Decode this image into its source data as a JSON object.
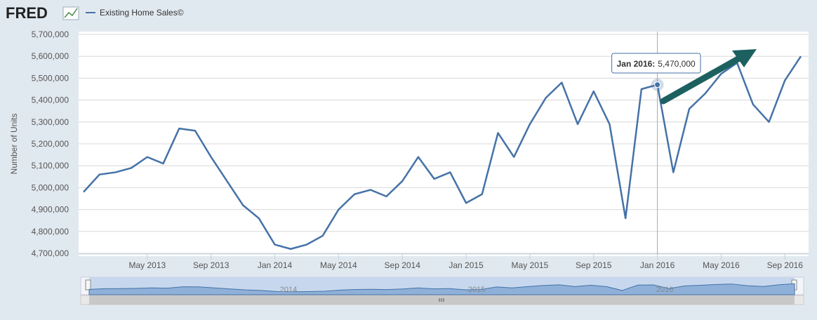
{
  "logo": "FRED",
  "chart_data": {
    "type": "line",
    "y_label": "Number of Units",
    "x": [
      "Jan 2013",
      "Feb 2013",
      "Mar 2013",
      "Apr 2013",
      "May 2013",
      "Jun 2013",
      "Jul 2013",
      "Aug 2013",
      "Sep 2013",
      "Oct 2013",
      "Nov 2013",
      "Dec 2013",
      "Jan 2014",
      "Feb 2014",
      "Mar 2014",
      "Apr 2014",
      "May 2014",
      "Jun 2014",
      "Jul 2014",
      "Aug 2014",
      "Sep 2014",
      "Oct 2014",
      "Nov 2014",
      "Dec 2014",
      "Jan 2015",
      "Feb 2015",
      "Mar 2015",
      "Apr 2015",
      "May 2015",
      "Jun 2015",
      "Jul 2015",
      "Aug 2015",
      "Sep 2015",
      "Oct 2015",
      "Nov 2015",
      "Dec 2015",
      "Jan 2016",
      "Feb 2016",
      "Mar 2016",
      "Apr 2016",
      "May 2016",
      "Jun 2016",
      "Jul 2016",
      "Aug 2016",
      "Sep 2016",
      "Oct 2016"
    ],
    "series": [
      {
        "name": "Existing Home Sales©",
        "color": "#4572a7",
        "values": [
          4980000,
          5060000,
          5070000,
          5090000,
          5140000,
          5110000,
          5270000,
          5260000,
          5140000,
          5030000,
          4920000,
          4860000,
          4740000,
          4720000,
          4740000,
          4780000,
          4900000,
          4970000,
          4990000,
          4960000,
          5030000,
          5140000,
          5040000,
          5070000,
          4930000,
          4970000,
          5250000,
          5140000,
          5290000,
          5410000,
          5480000,
          5290000,
          5440000,
          5290000,
          4860000,
          5450000,
          5470000,
          5070000,
          5360000,
          5430000,
          5520000,
          5570000,
          5380000,
          5300000,
          5490000,
          5600000
        ]
      }
    ],
    "xticks": [
      "May 2013",
      "Sep 2013",
      "Jan 2014",
      "May 2014",
      "Sep 2014",
      "Jan 2015",
      "May 2015",
      "Sep 2015",
      "Jan 2016",
      "May 2016",
      "Sep 2016"
    ],
    "ylim": [
      4700000,
      5700000
    ],
    "yticks": [
      {
        "value": 4700000,
        "label": "4,700,000"
      },
      {
        "value": 4800000,
        "label": "4,800,000"
      },
      {
        "value": 4900000,
        "label": "4,900,000"
      },
      {
        "value": 5000000,
        "label": "5,000,000"
      },
      {
        "value": 5100000,
        "label": "5,100,000"
      },
      {
        "value": 5200000,
        "label": "5,200,000"
      },
      {
        "value": 5300000,
        "label": "5,300,000"
      },
      {
        "value": 5400000,
        "label": "5,400,000"
      },
      {
        "value": 5500000,
        "label": "5,500,000"
      },
      {
        "value": 5600000,
        "label": "5,600,000"
      },
      {
        "value": 5700000,
        "label": "5,700,000"
      }
    ],
    "grid": true,
    "tooltip": {
      "label": "Jan 2016:",
      "value": "5,470,000"
    },
    "navigator_labels": [
      "2014",
      "2015",
      "2016"
    ]
  }
}
